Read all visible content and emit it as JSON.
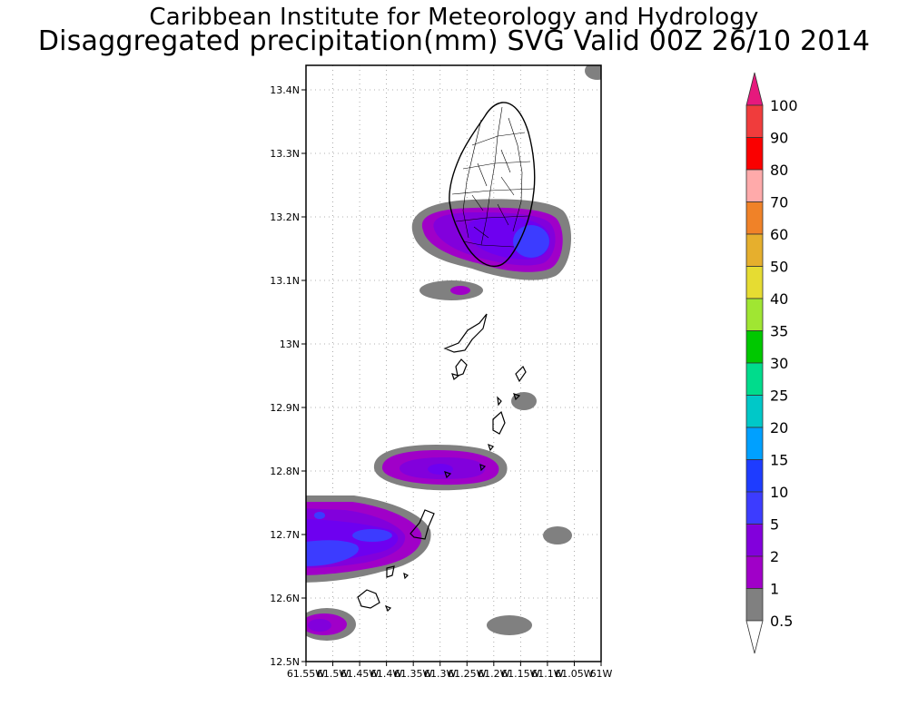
{
  "header": {
    "title": "Caribbean Institute for Meteorology and Hydrology",
    "subtitle": "Disaggregated precipitation(mm) SVG Valid 00Z 26/10 2014"
  },
  "map": {
    "region": "St. Vincent and the Grenadines",
    "lon_range": [
      -61.55,
      -61.0
    ],
    "lat_range": [
      12.5,
      13.44
    ],
    "lat_ticks": [
      {
        "value": 13.4,
        "label": "13.4N"
      },
      {
        "value": 13.3,
        "label": "13.3N"
      },
      {
        "value": 13.2,
        "label": "13.2N"
      },
      {
        "value": 13.1,
        "label": "13.1N"
      },
      {
        "value": 13.0,
        "label": "13N"
      },
      {
        "value": 12.9,
        "label": "12.9N"
      },
      {
        "value": 12.8,
        "label": "12.8N"
      },
      {
        "value": 12.7,
        "label": "12.7N"
      },
      {
        "value": 12.6,
        "label": "12.6N"
      },
      {
        "value": 12.5,
        "label": "12.5N"
      }
    ],
    "lon_ticks": [
      {
        "value": -61.55,
        "label": "61.55W"
      },
      {
        "value": -61.5,
        "label": "61.5W"
      },
      {
        "value": -61.45,
        "label": "61.45W"
      },
      {
        "value": -61.4,
        "label": "61.4W"
      },
      {
        "value": -61.35,
        "label": "61.35W"
      },
      {
        "value": -61.3,
        "label": "61.3W"
      },
      {
        "value": -61.25,
        "label": "61.25W"
      },
      {
        "value": -61.2,
        "label": "61.2W"
      },
      {
        "value": -61.15,
        "label": "61.15W"
      },
      {
        "value": -61.1,
        "label": "61.1W"
      },
      {
        "value": -61.05,
        "label": "61.05W"
      },
      {
        "value": -61.0,
        "label": "61W"
      }
    ],
    "grid": true,
    "colors": {
      "level_0_5": "#808080",
      "level_1": "#a000c8",
      "level_2": "#8200dc",
      "level_5": "#6e00f0",
      "level_10": "#3c3cff",
      "coast": "#000000"
    }
  },
  "colorbar": {
    "levels": [
      {
        "label": "100"
      },
      {
        "label": "90"
      },
      {
        "label": "80"
      },
      {
        "label": "70"
      },
      {
        "label": "60"
      },
      {
        "label": "50"
      },
      {
        "label": "40"
      },
      {
        "label": "35"
      },
      {
        "label": "30"
      },
      {
        "label": "25"
      },
      {
        "label": "20"
      },
      {
        "label": "15"
      },
      {
        "label": "10"
      },
      {
        "label": "5"
      },
      {
        "label": "2"
      },
      {
        "label": "1"
      },
      {
        "label": "0.5"
      }
    ],
    "top_arrow_color": "#e6197d",
    "bottom_arrow_color": "#ffffff",
    "segments": [
      "#f03c3c",
      "#fa0000",
      "#ffaaaa",
      "#f08228",
      "#e6af2d",
      "#e6dc32",
      "#a0e632",
      "#00c800",
      "#00dc8c",
      "#00c8c8",
      "#00a0ff",
      "#1e3cff",
      "#3c3cff",
      "#8200dc",
      "#a000c8",
      "#808080"
    ]
  }
}
